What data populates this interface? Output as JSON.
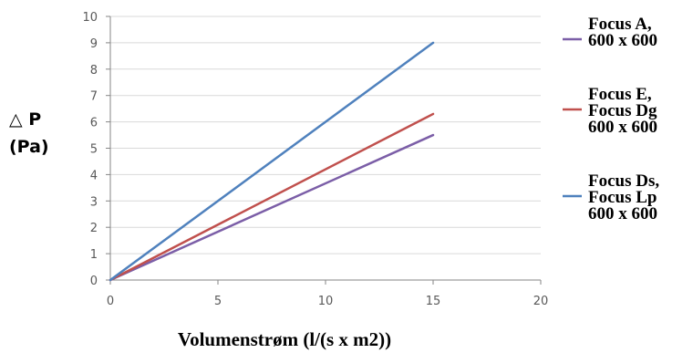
{
  "chart_data": {
    "type": "line",
    "xlabel": "Volumenstrøm (l/(s x m2))",
    "ylabel": [
      "△ P",
      "(Pa)"
    ],
    "xlim": [
      0,
      20
    ],
    "ylim": [
      0,
      10
    ],
    "x_ticks": [
      "0",
      "5",
      "10",
      "15",
      "20"
    ],
    "y_ticks": [
      "0",
      "1",
      "2",
      "3",
      "4",
      "5",
      "6",
      "7",
      "8",
      "9",
      "10"
    ],
    "grid": true,
    "legend_position": "right",
    "series": [
      {
        "name": [
          "Focus A,",
          "600 x 600"
        ],
        "color": "#7B5EA7",
        "x": [
          0,
          15
        ],
        "y": [
          0,
          5.5
        ]
      },
      {
        "name": [
          "Focus E,",
          "Focus Dg",
          "600 x 600"
        ],
        "color": "#C0504D",
        "x": [
          0,
          15
        ],
        "y": [
          0,
          6.3
        ]
      },
      {
        "name": [
          "Focus Ds,",
          "Focus Lp",
          "600 x 600"
        ],
        "color": "#4F81BD",
        "x": [
          0,
          15
        ],
        "y": [
          0,
          9
        ]
      }
    ]
  }
}
